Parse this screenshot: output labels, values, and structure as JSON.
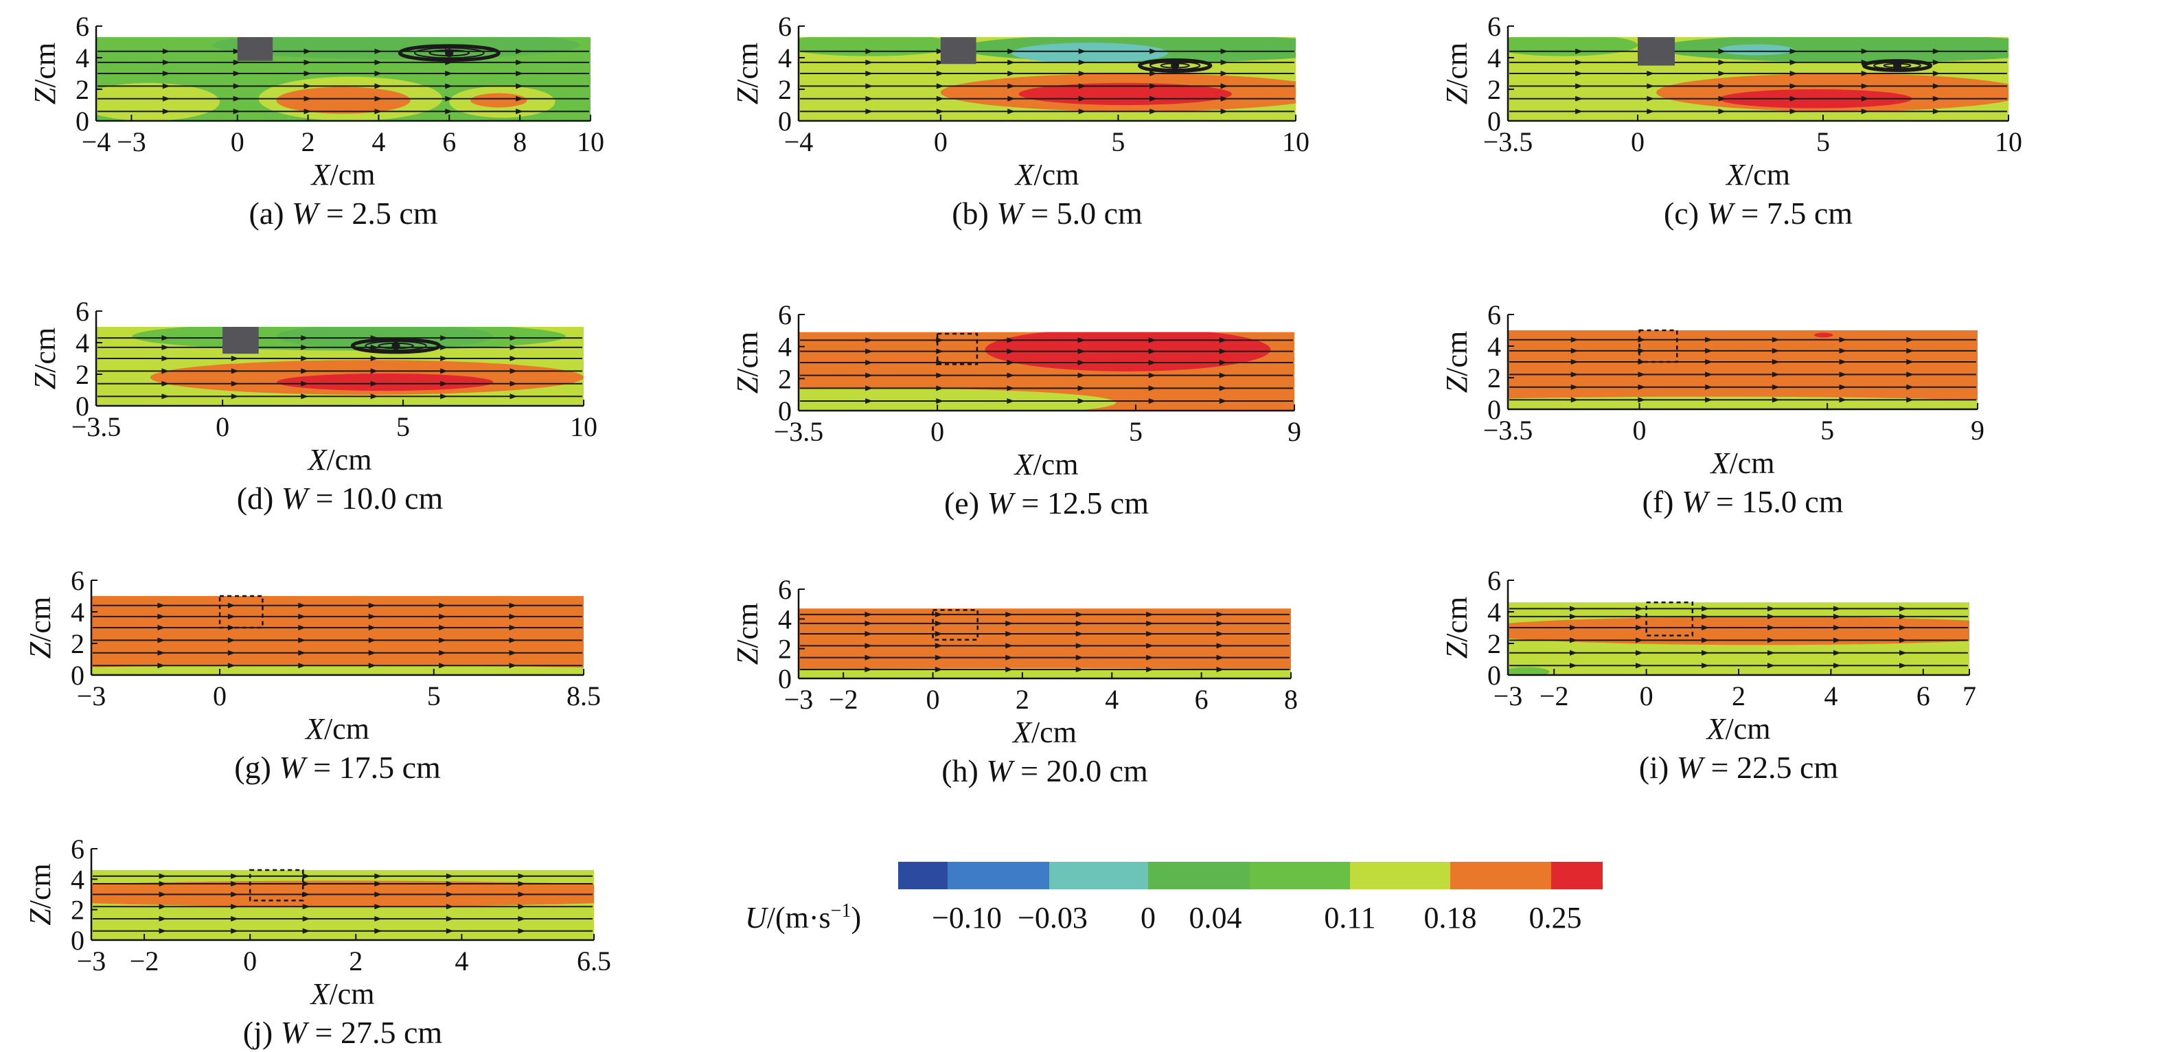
{
  "chart_data": [
    {
      "type": "heatmap",
      "panel": "a",
      "caption_prefix": "(a) ",
      "caption_var": "W",
      "caption_suffix": " = 2.5 cm",
      "xlabel_var": "X",
      "xlabel_unit": "/cm",
      "ylabel_var": "Z",
      "ylabel_unit": "/cm",
      "xlim": [
        -4,
        10
      ],
      "ylim": [
        0,
        6
      ],
      "domain_top": 5.3,
      "xticks": [
        -4,
        -3,
        0,
        2,
        4,
        6,
        8,
        10
      ],
      "yticks": [
        0,
        2,
        4,
        6
      ],
      "obstacle": {
        "x": [
          0,
          1
        ],
        "z": [
          3.8,
          5.3
        ],
        "style": "solid"
      },
      "background_level": 0.04,
      "regions": [
        {
          "cx": 4.5,
          "cz": 4.8,
          "rx": 5.2,
          "rz": 0.9,
          "level": 0
        },
        {
          "cx": -2.5,
          "cz": 1.2,
          "rx": 2,
          "rz": 1.2,
          "level": 0.11
        },
        {
          "cx": 3.2,
          "cz": 1.4,
          "rx": 2.6,
          "rz": 1.4,
          "level": 0.11
        },
        {
          "cx": 7.5,
          "cz": 1.2,
          "rx": 1.5,
          "rz": 1,
          "level": 0.11
        },
        {
          "cx": 3.0,
          "cz": 1.3,
          "rx": 1.9,
          "rz": 0.85,
          "level": 0.18
        },
        {
          "cx": 7.4,
          "cz": 1.3,
          "rx": 0.8,
          "rz": 0.45,
          "level": 0.18
        }
      ],
      "streamline_z": [
        0.6,
        1.4,
        2.2,
        3.0,
        3.7,
        4.4
      ],
      "vortices": [
        {
          "x": 6.0,
          "z": 4.3,
          "rx": 1.4,
          "rz": 0.45
        }
      ]
    },
    {
      "type": "heatmap",
      "panel": "b",
      "caption_prefix": "(b) ",
      "caption_var": "W",
      "caption_suffix": " = 5.0 cm",
      "xlabel_var": "X",
      "xlabel_unit": "/cm",
      "ylabel_var": "Z",
      "ylabel_unit": "/cm",
      "xlim": [
        -4,
        10
      ],
      "ylim": [
        0,
        6
      ],
      "domain_top": 5.3,
      "xticks": [
        -4,
        0,
        5,
        10
      ],
      "yticks": [
        0,
        2,
        4,
        6
      ],
      "obstacle": {
        "x": [
          0,
          1
        ],
        "z": [
          3.6,
          5.3
        ],
        "style": "solid"
      },
      "background_level": 0.11,
      "regions": [
        {
          "cx": 6,
          "cz": 4.6,
          "rx": 5.5,
          "rz": 0.9,
          "level": 0
        },
        {
          "cx": -2,
          "cz": 4.8,
          "rx": 2.5,
          "rz": 0.7,
          "level": 0.04
        },
        {
          "cx": 4.2,
          "cz": 4.3,
          "rx": 2.2,
          "rz": 0.65,
          "level": -0.03
        },
        {
          "cx": 5.5,
          "cz": 1.8,
          "rx": 5.5,
          "rz": 1.2,
          "level": 0.18
        },
        {
          "cx": 5.2,
          "cz": 1.7,
          "rx": 3,
          "rz": 0.7,
          "level": 0.25
        }
      ],
      "streamline_z": [
        0.6,
        1.4,
        2.2,
        3.0,
        3.7,
        4.4
      ],
      "vortices": [
        {
          "x": 6.6,
          "z": 3.5,
          "rx": 1.0,
          "rz": 0.35
        }
      ]
    },
    {
      "type": "heatmap",
      "panel": "c",
      "caption_prefix": "(c) ",
      "caption_var": "W",
      "caption_suffix": " = 7.5 cm",
      "xlabel_var": "X",
      "xlabel_unit": "/cm",
      "ylabel_var": "Z",
      "ylabel_unit": "/cm",
      "xlim": [
        -3.5,
        10
      ],
      "ylim": [
        0,
        6
      ],
      "domain_top": 5.3,
      "xticks": [
        -3.5,
        0,
        5,
        10
      ],
      "yticks": [
        0,
        2,
        4,
        6
      ],
      "obstacle": {
        "x": [
          0,
          1
        ],
        "z": [
          3.5,
          5.3
        ],
        "style": "solid"
      },
      "background_level": 0.11,
      "regions": [
        {
          "cx": 6,
          "cz": 4.6,
          "rx": 5.5,
          "rz": 0.9,
          "level": 0
        },
        {
          "cx": -2,
          "cz": 4.8,
          "rx": 2,
          "rz": 0.7,
          "level": 0.04
        },
        {
          "cx": 3.2,
          "cz": 4.5,
          "rx": 1,
          "rz": 0.35,
          "level": -0.03
        },
        {
          "cx": 5.5,
          "cz": 1.8,
          "rx": 5,
          "rz": 1.2,
          "level": 0.18
        },
        {
          "cx": 4.8,
          "cz": 1.4,
          "rx": 2.6,
          "rz": 0.6,
          "level": 0.25
        }
      ],
      "streamline_z": [
        0.6,
        1.4,
        2.2,
        3.0,
        3.7,
        4.4
      ],
      "vortices": [
        {
          "x": 7.0,
          "z": 3.5,
          "rx": 0.9,
          "rz": 0.3
        }
      ]
    },
    {
      "type": "heatmap",
      "panel": "d",
      "caption_prefix": "(d) ",
      "caption_var": "W",
      "caption_suffix": " = 10.0 cm",
      "xlabel_var": "X",
      "xlabel_unit": "/cm",
      "ylabel_var": "Z",
      "ylabel_unit": "/cm",
      "xlim": [
        -3.5,
        10
      ],
      "ylim": [
        0,
        6
      ],
      "domain_top": 5.0,
      "xticks": [
        -3.5,
        0,
        5,
        10
      ],
      "yticks": [
        0,
        2,
        4,
        6
      ],
      "obstacle": {
        "x": [
          0,
          1
        ],
        "z": [
          3.3,
          5.0
        ],
        "style": "solid"
      },
      "background_level": 0.11,
      "regions": [
        {
          "cx": 3.5,
          "cz": 4.4,
          "rx": 6,
          "rz": 0.9,
          "level": 0.04
        },
        {
          "cx": 4.5,
          "cz": 4.4,
          "rx": 3,
          "rz": 0.8,
          "level": 0
        },
        {
          "cx": 4,
          "cz": 1.8,
          "rx": 6,
          "rz": 1.1,
          "level": 0.18
        },
        {
          "cx": 4.5,
          "cz": 1.5,
          "rx": 3,
          "rz": 0.55,
          "level": 0.25
        }
      ],
      "streamline_z": [
        0.6,
        1.4,
        2.2,
        3.0,
        3.7,
        4.3
      ],
      "vortices": [
        {
          "x": 4.8,
          "z": 3.8,
          "rx": 1.2,
          "rz": 0.4
        }
      ]
    },
    {
      "type": "heatmap",
      "panel": "e",
      "caption_prefix": "(e) ",
      "caption_var": "W",
      "caption_suffix": " = 12.5 cm",
      "xlabel_var": "X",
      "xlabel_unit": "/cm",
      "ylabel_var": "Z",
      "ylabel_unit": "/cm",
      "xlim": [
        -3.5,
        9
      ],
      "ylim": [
        0,
        6
      ],
      "domain_top": 4.9,
      "xticks": [
        -3.5,
        0,
        5,
        9
      ],
      "yticks": [
        0,
        2,
        4,
        6
      ],
      "obstacle": {
        "x": [
          0,
          1
        ],
        "z": [
          2.9,
          4.8
        ],
        "style": "dashed"
      },
      "background_level": 0.18,
      "regions": [
        {
          "cx": -1.5,
          "cz": 0.5,
          "rx": 6,
          "rz": 0.9,
          "level": 0.11
        },
        {
          "cx": 4.8,
          "cz": 3.8,
          "rx": 3.6,
          "rz": 1.35,
          "level": 0.25
        }
      ],
      "streamline_z": [
        0.6,
        1.4,
        2.2,
        3.0,
        3.7,
        4.4
      ],
      "vortices": []
    },
    {
      "type": "heatmap",
      "panel": "f",
      "caption_prefix": "(f) ",
      "caption_var": "W",
      "caption_suffix": " = 15.0 cm",
      "xlabel_var": "X",
      "xlabel_unit": "/cm",
      "ylabel_var": "Z",
      "ylabel_unit": "/cm",
      "xlim": [
        -3.5,
        9
      ],
      "ylim": [
        0,
        6
      ],
      "domain_top": 5.0,
      "xticks": [
        -3.5,
        0,
        5,
        9
      ],
      "yticks": [
        0,
        2,
        4,
        6
      ],
      "obstacle": {
        "x": [
          0,
          1
        ],
        "z": [
          3.0,
          5.0
        ],
        "style": "dashed"
      },
      "background_level": 0.18,
      "regions": [
        {
          "cx": 2,
          "cz": 0.2,
          "rx": 9,
          "rz": 0.6,
          "level": 0.11
        },
        {
          "cx": 4.9,
          "cz": 4.7,
          "rx": 0.25,
          "rz": 0.15,
          "level": 0.25
        }
      ],
      "streamline_z": [
        0.6,
        1.4,
        2.2,
        3.0,
        3.7,
        4.4
      ],
      "vortices": []
    },
    {
      "type": "heatmap",
      "panel": "g",
      "caption_prefix": "(g) ",
      "caption_var": "W",
      "caption_suffix": " = 17.5 cm",
      "xlabel_var": "X",
      "xlabel_unit": "/cm",
      "ylabel_var": "Z",
      "ylabel_unit": "/cm",
      "xlim": [
        -3,
        8.5
      ],
      "ylim": [
        0,
        6
      ],
      "domain_top": 5.0,
      "xticks": [
        -3,
        0,
        5,
        8.5
      ],
      "yticks": [
        0,
        2,
        4,
        6
      ],
      "obstacle": {
        "x": [
          0,
          1
        ],
        "z": [
          3.0,
          5.0
        ],
        "style": "dashed"
      },
      "background_level": 0.18,
      "regions": [
        {
          "cx": 2.5,
          "cz": 0.15,
          "rx": 9,
          "rz": 0.45,
          "level": 0.11
        }
      ],
      "streamline_z": [
        0.6,
        1.4,
        2.2,
        3.0,
        3.7,
        4.4
      ],
      "vortices": []
    },
    {
      "type": "heatmap",
      "panel": "h",
      "caption_prefix": "(h) ",
      "caption_var": "W",
      "caption_suffix": " = 20.0 cm",
      "xlabel_var": "X",
      "xlabel_unit": "/cm",
      "ylabel_var": "Z",
      "ylabel_unit": "/cm",
      "xlim": [
        -3,
        8
      ],
      "ylim": [
        0,
        6
      ],
      "domain_top": 4.7,
      "xticks": [
        -3,
        -2,
        0,
        2,
        4,
        6,
        8
      ],
      "yticks": [
        0,
        2,
        4,
        6
      ],
      "obstacle": {
        "x": [
          0,
          1
        ],
        "z": [
          2.6,
          4.6
        ],
        "style": "dashed"
      },
      "background_level": 0.18,
      "regions": [
        {
          "cx": 2.5,
          "cz": 0.15,
          "rx": 8,
          "rz": 0.55,
          "level": 0.11
        }
      ],
      "streamline_z": [
        0.6,
        1.4,
        2.2,
        3.0,
        3.7,
        4.3
      ],
      "vortices": []
    },
    {
      "type": "heatmap",
      "panel": "i",
      "caption_prefix": "(i) ",
      "caption_var": "W",
      "caption_suffix": " = 22.5 cm",
      "xlabel_var": "X",
      "xlabel_unit": "/cm",
      "ylabel_var": "Z",
      "ylabel_unit": "/cm",
      "xlim": [
        -3,
        7
      ],
      "ylim": [
        0,
        6
      ],
      "domain_top": 4.6,
      "xticks": [
        -3,
        -2,
        0,
        2,
        4,
        6,
        7
      ],
      "yticks": [
        0,
        2,
        4,
        6
      ],
      "obstacle": {
        "x": [
          0,
          1
        ],
        "z": [
          2.5,
          4.6
        ],
        "style": "dashed"
      },
      "background_level": 0.11,
      "regions": [
        {
          "cx": 2.5,
          "cz": 2.8,
          "rx": 6.5,
          "rz": 0.9,
          "level": 0.18
        },
        {
          "cx": -2.6,
          "cz": 0.2,
          "rx": 0.5,
          "rz": 0.3,
          "level": 0.04
        }
      ],
      "streamline_z": [
        0.6,
        1.4,
        2.2,
        3.0,
        3.7,
        4.2
      ],
      "vortices": []
    },
    {
      "type": "heatmap",
      "panel": "j",
      "caption_prefix": "(j) ",
      "caption_var": "W",
      "caption_suffix": " = 27.5 cm",
      "xlabel_var": "X",
      "xlabel_unit": "/cm",
      "ylabel_var": "Z",
      "ylabel_unit": "/cm",
      "xlim": [
        -3,
        6.5
      ],
      "ylim": [
        0,
        6
      ],
      "domain_top": 4.6,
      "xticks": [
        -3,
        -2,
        0,
        2,
        4,
        6.5
      ],
      "yticks": [
        0,
        2,
        4,
        6
      ],
      "obstacle": {
        "x": [
          0,
          1
        ],
        "z": [
          2.6,
          4.6
        ],
        "style": "dashed"
      },
      "background_level": 0.11,
      "regions": [
        {
          "cx": 1.75,
          "cz": 3.05,
          "rx": 7,
          "rz": 0.85,
          "level": 0.18
        }
      ],
      "streamline_z": [
        0.6,
        1.4,
        2.2,
        3.0,
        3.7,
        4.2
      ],
      "vortices": []
    }
  ],
  "colorbar": {
    "label_var": "U",
    "label_unit": "/(m·s",
    "label_exp": "−1",
    "label_close": ")",
    "levels": [
      -0.1,
      -0.03,
      0,
      0.04,
      0.11,
      0.18,
      0.25
    ],
    "tick_labels": [
      "−0.10",
      "−0.03",
      "0",
      "0.04",
      "0.11",
      "0.18",
      "0.25"
    ],
    "colors": [
      "#2b4aa0",
      "#3f7cc8",
      "#6cc3b8",
      "#5db64e",
      "#6abf45",
      "#bfdb3c",
      "#e9782a",
      "#e0282e"
    ]
  },
  "colors": {
    "obstacle": "#545459",
    "streamline": "#1a1a1a"
  }
}
